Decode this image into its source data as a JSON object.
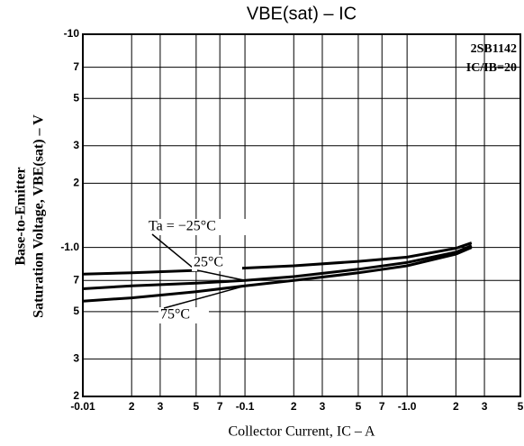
{
  "chart_data": {
    "type": "line",
    "title": "VBE(sat) – IC",
    "subtitle": "2SB1142",
    "annotations": [
      "IC/IB=20"
    ],
    "xlabel": "Collector Current, IC – A",
    "ylabel": [
      "Base-to-Emitter",
      "Saturation Voltage, VBE(sat) – V"
    ],
    "x": [
      -0.01,
      -0.02,
      -0.05,
      -0.1,
      -0.2,
      -0.5,
      -1.0,
      -2.0,
      -2.5
    ],
    "series": [
      {
        "name": "Ta = −25°C",
        "color": "#000000",
        "values": [
          -0.75,
          -0.76,
          -0.78,
          -0.8,
          -0.82,
          -0.86,
          -0.9,
          -0.99,
          -1.05
        ]
      },
      {
        "name": "25°C",
        "color": "#000000",
        "values": [
          -0.64,
          -0.66,
          -0.68,
          -0.7,
          -0.73,
          -0.79,
          -0.85,
          -0.95,
          -1.02
        ]
      },
      {
        "name": "75°C",
        "color": "#000000",
        "values": [
          -0.56,
          -0.58,
          -0.62,
          -0.66,
          -0.7,
          -0.76,
          -0.82,
          -0.93,
          -1.0
        ]
      }
    ],
    "xscale": "log",
    "yscale": "log",
    "xlim": [
      -0.01,
      -5
    ],
    "ylim": [
      -0.2,
      -10
    ],
    "xticks": [
      -0.01,
      {
        "value": -0.02,
        "label": "2"
      },
      {
        "value": -0.03,
        "label": "3"
      },
      {
        "value": -0.05,
        "label": "5"
      },
      {
        "value": -0.07,
        "label": "7"
      },
      -0.1,
      {
        "value": -0.2,
        "label": "2"
      },
      {
        "value": -0.3,
        "label": "3"
      },
      {
        "value": -0.5,
        "label": "5"
      },
      {
        "value": -0.7,
        "label": "7"
      },
      {
        "value": -1.0,
        "label": "-1.0"
      },
      {
        "value": -2,
        "label": "2"
      },
      {
        "value": -3,
        "label": "3"
      },
      {
        "value": -5,
        "label": "5"
      }
    ],
    "yticks": [
      -10,
      {
        "value": -7,
        "label": "7"
      },
      {
        "value": -5,
        "label": "5"
      },
      {
        "value": -3,
        "label": "3"
      },
      {
        "value": -2,
        "label": "2"
      },
      {
        "value": -1.0,
        "label": "-1.0"
      },
      {
        "value": -0.7,
        "label": "7"
      },
      {
        "value": -0.5,
        "label": "5"
      },
      {
        "value": -0.3,
        "label": "3"
      },
      {
        "value": -0.2,
        "label": "2"
      }
    ],
    "grid": true
  }
}
